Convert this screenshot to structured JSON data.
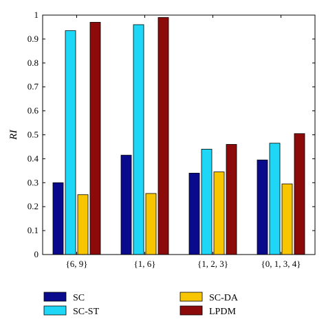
{
  "chart_data": {
    "type": "bar",
    "title": "",
    "xlabel": "",
    "ylabel": "RI",
    "ylim": [
      0,
      1
    ],
    "yticks": [
      "0",
      "0.1",
      "0.2",
      "0.3",
      "0.4",
      "0.5",
      "0.6",
      "0.7",
      "0.8",
      "0.9",
      "1"
    ],
    "categories": [
      "{6, 9}",
      "{1, 6}",
      "{1, 2, 3}",
      "{0, 1, 3, 4}"
    ],
    "series": [
      {
        "name": "SC",
        "color": "#0a0a8c",
        "values": [
          0.3,
          0.415,
          0.34,
          0.395
        ]
      },
      {
        "name": "SC-ST",
        "color": "#1ed6f5",
        "values": [
          0.935,
          0.96,
          0.44,
          0.465
        ]
      },
      {
        "name": "SC-DA",
        "color": "#f7c600",
        "values": [
          0.25,
          0.255,
          0.345,
          0.295
        ]
      },
      {
        "name": "LPDM",
        "color": "#8c0a0a",
        "values": [
          0.97,
          0.99,
          0.46,
          0.505
        ]
      }
    ],
    "grid": false,
    "legend_placement": "bottom"
  }
}
